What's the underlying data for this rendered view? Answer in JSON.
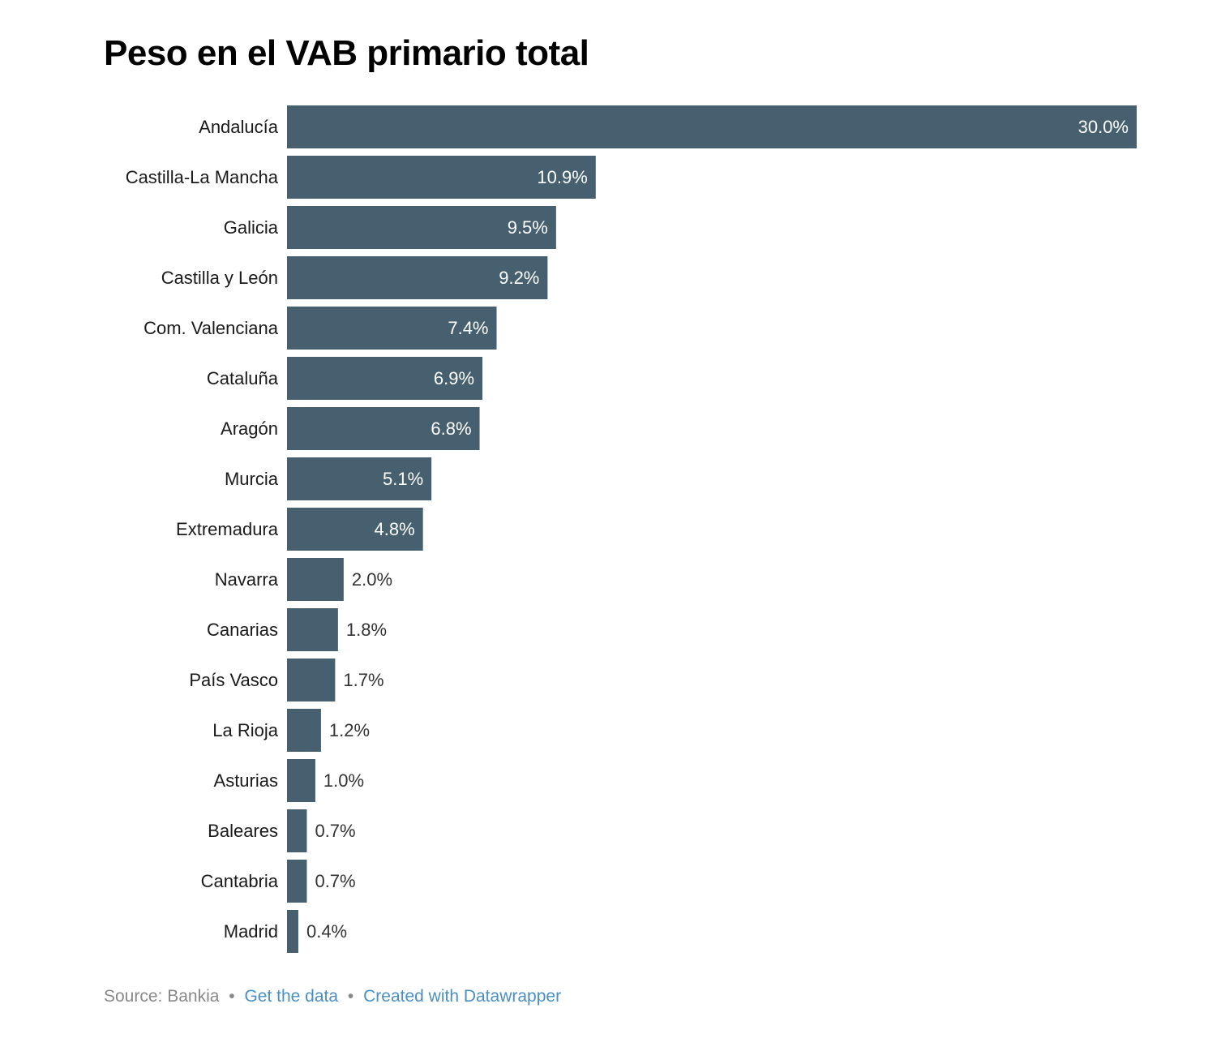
{
  "chart_data": {
    "type": "bar",
    "orientation": "horizontal",
    "title": "Peso en el VAB primario total",
    "categories": [
      "Andalucía",
      "Castilla-La Mancha",
      "Galicia",
      "Castilla y León",
      "Com. Valenciana",
      "Cataluña",
      "Aragón",
      "Murcia",
      "Extremadura",
      "Navarra",
      "Canarias",
      "País Vasco",
      "La Rioja",
      "Asturias",
      "Baleares",
      "Cantabria",
      "Madrid"
    ],
    "values": [
      30.0,
      10.9,
      9.5,
      9.2,
      7.4,
      6.9,
      6.8,
      5.1,
      4.8,
      2.0,
      1.8,
      1.7,
      1.2,
      1.0,
      0.7,
      0.7,
      0.4
    ],
    "value_labels": [
      "30.0%",
      "10.9%",
      "9.5%",
      "9.2%",
      "7.4%",
      "6.9%",
      "6.8%",
      "5.1%",
      "4.8%",
      "2.0%",
      "1.8%",
      "1.7%",
      "1.2%",
      "1.0%",
      "0.7%",
      "0.7%",
      "0.4%"
    ],
    "xlim": [
      0,
      30
    ],
    "bar_color": "#46606f",
    "grid": false
  },
  "footer": {
    "source": "Source: Bankia",
    "separator": "•",
    "get_data": "Get the data",
    "created_with": "Created with Datawrapper"
  }
}
